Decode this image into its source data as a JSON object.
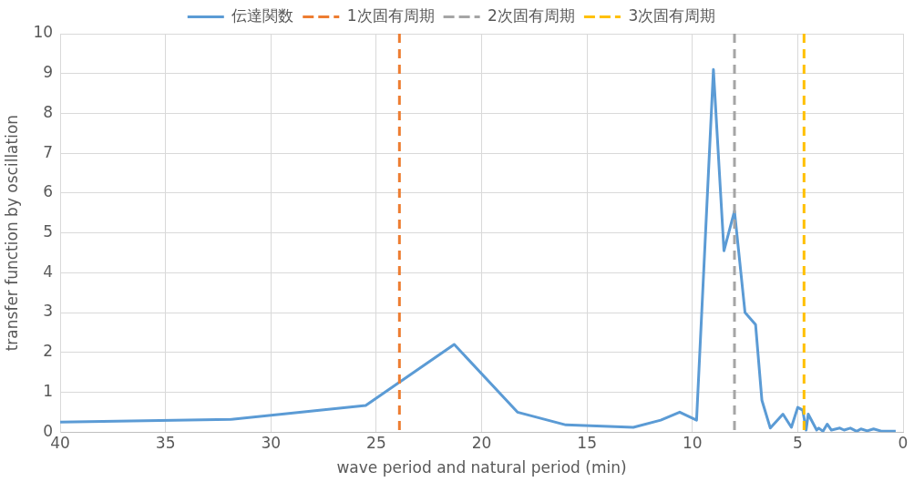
{
  "chart_data": {
    "type": "line",
    "xlabel": "wave period and natural period (min)",
    "ylabel": "transfer function by oscillation",
    "xlim": [
      40,
      0
    ],
    "xticks": [
      40,
      35,
      30,
      25,
      20,
      15,
      10,
      5,
      0
    ],
    "ylim": [
      0,
      10
    ],
    "yticks": [
      0,
      1,
      2,
      3,
      4,
      5,
      6,
      7,
      8,
      9,
      10
    ],
    "grid": true,
    "legend": "top",
    "marker": "none",
    "series": [
      {
        "name": "伝達関数",
        "color": "#5b9bd5",
        "x": [
          40,
          31.9,
          25.5,
          21.3,
          18.3,
          16.0,
          12.8,
          11.5,
          10.6,
          9.8,
          9.0,
          8.5,
          8.0,
          7.5,
          7.0,
          6.7,
          6.3,
          5.7,
          5.3,
          5.0,
          4.76,
          4.6,
          4.5,
          4.1,
          4.0,
          3.8,
          3.6,
          3.4,
          3.0,
          2.8,
          2.5,
          2.2,
          2.0,
          1.7,
          1.4,
          1.0,
          0.35
        ],
        "values": [
          0.25,
          0.32,
          0.67,
          2.2,
          0.5,
          0.18,
          0.12,
          0.3,
          0.5,
          0.3,
          9.1,
          4.55,
          5.55,
          3.0,
          2.7,
          0.8,
          0.1,
          0.45,
          0.12,
          0.62,
          0.55,
          0.05,
          0.45,
          0.05,
          0.1,
          0.02,
          0.2,
          0.05,
          0.1,
          0.05,
          0.1,
          0.02,
          0.08,
          0.03,
          0.08,
          0.02,
          0.02
        ]
      }
    ],
    "ref_lines": [
      {
        "axis": "x",
        "value": 23.9,
        "label": "1次固有周期",
        "color": "#ed7d31",
        "line_style": "dashed"
      },
      {
        "axis": "x",
        "value": 8.0,
        "label": "2次固有周期",
        "color": "#a5a5a5",
        "line_style": "dashed"
      },
      {
        "axis": "x",
        "value": 4.7,
        "label": "3次固有周期",
        "color": "#ffc000",
        "line_style": "dashed"
      }
    ]
  }
}
